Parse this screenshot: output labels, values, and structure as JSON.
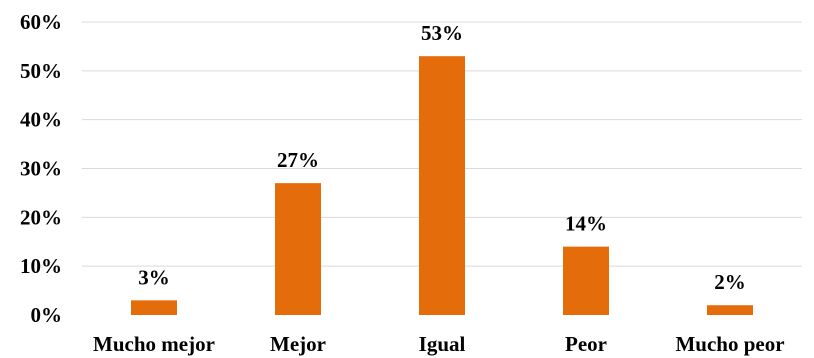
{
  "chart_data": {
    "type": "bar",
    "title": "",
    "xlabel": "",
    "ylabel": "",
    "categories": [
      "Mucho mejor",
      "Mejor",
      "Igual",
      "Peor",
      "Mucho peor"
    ],
    "values": [
      3,
      27,
      53,
      14,
      2
    ],
    "data_labels": [
      "3%",
      "27%",
      "53%",
      "14%",
      "2%"
    ],
    "ylim": [
      0,
      60
    ],
    "yticks": [
      0,
      10,
      20,
      30,
      40,
      50,
      60
    ],
    "ytick_labels": [
      "0%",
      "10%",
      "20%",
      "30%",
      "40%",
      "50%",
      "60%"
    ],
    "grid": true,
    "legend": "none",
    "bar_color": "#E46C0A"
  }
}
